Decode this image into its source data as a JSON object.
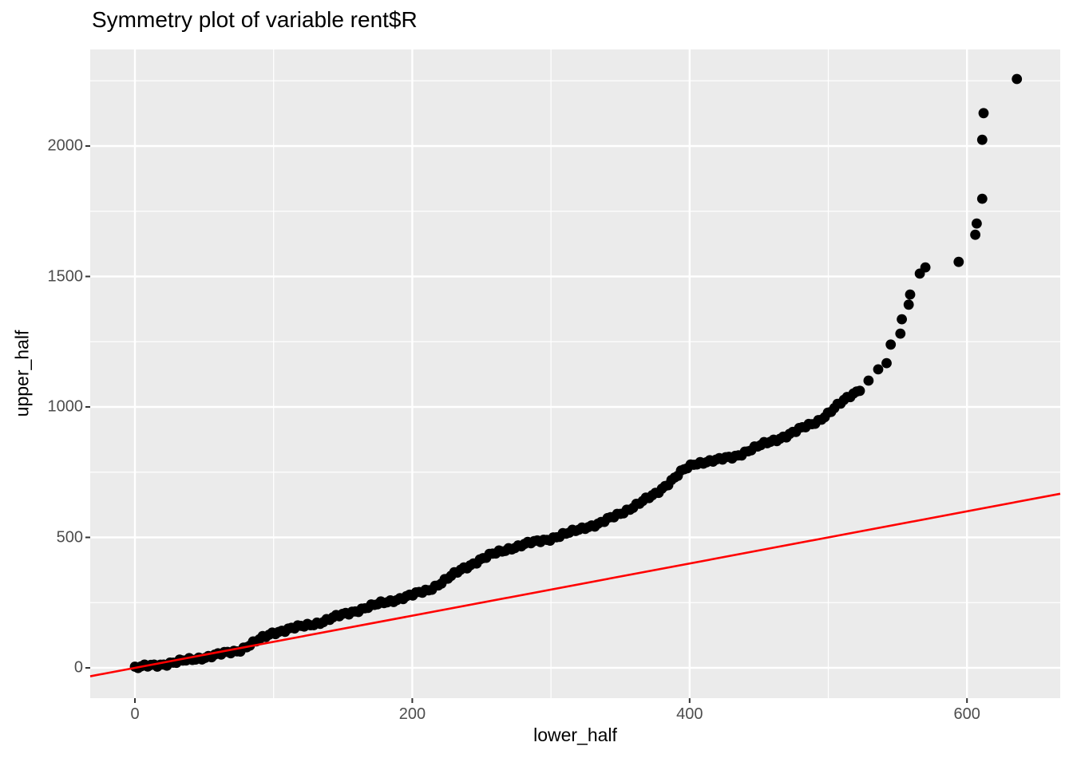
{
  "page": {
    "background_color": "#FFFFFF"
  },
  "chart_data": {
    "type": "scatter",
    "title": "Symmetry plot of variable rent$R",
    "xlabel": "lower_half",
    "ylabel": "upper_half",
    "x_ticks": [
      0,
      200,
      400,
      600
    ],
    "y_ticks": [
      0,
      500,
      1000,
      1500,
      2000
    ],
    "x_minor_gridlines": [
      100,
      300,
      500
    ],
    "y_minor_gridlines": [
      250,
      750,
      1250,
      1750,
      2250
    ],
    "xlim": [
      -32,
      667
    ],
    "ylim": [
      -116,
      2370
    ],
    "grid": true,
    "legend_position": "none",
    "panel_background_color": "#EBEBEB",
    "gridline_color": "#FFFFFF",
    "point_color": "#000000",
    "tick_label_color": "#4D4D4D",
    "reference_line": {
      "description": "identity line y = x",
      "slope": 1,
      "intercept": 0,
      "color": "#FF0000"
    },
    "series": [
      {
        "name": "symmetry-curve-dense-band",
        "style": "dense overlapping points (sampled anchor values)",
        "points": [
          [
            0,
            0
          ],
          [
            8,
            6
          ],
          [
            18,
            12
          ],
          [
            30,
            22
          ],
          [
            47,
            38
          ],
          [
            62,
            52
          ],
          [
            75,
            67
          ],
          [
            88,
            103
          ],
          [
            100,
            135
          ],
          [
            112,
            150
          ],
          [
            122,
            160
          ],
          [
            133,
            174
          ],
          [
            145,
            195
          ],
          [
            160,
            220
          ],
          [
            178,
            248
          ],
          [
            200,
            278
          ],
          [
            212,
            300
          ],
          [
            222,
            330
          ],
          [
            235,
            375
          ],
          [
            248,
            412
          ],
          [
            258,
            435
          ],
          [
            270,
            458
          ],
          [
            285,
            478
          ],
          [
            300,
            496
          ],
          [
            312,
            515
          ],
          [
            325,
            540
          ],
          [
            335,
            552
          ],
          [
            350,
            592
          ],
          [
            363,
            628
          ],
          [
            375,
            665
          ],
          [
            385,
            710
          ],
          [
            395,
            755
          ],
          [
            403,
            780
          ],
          [
            412,
            792
          ],
          [
            422,
            798
          ],
          [
            432,
            808
          ],
          [
            440,
            828
          ],
          [
            450,
            850
          ],
          [
            461,
            872
          ],
          [
            472,
            895
          ],
          [
            482,
            920
          ],
          [
            492,
            945
          ],
          [
            500,
            975
          ],
          [
            508,
            1010
          ],
          [
            515,
            1040
          ],
          [
            521,
            1062
          ],
          [
            525,
            1080
          ]
        ]
      },
      {
        "name": "upper-tail-individual-points",
        "style": "isolated points",
        "points": [
          [
            529,
            1101
          ],
          [
            536,
            1144
          ],
          [
            542,
            1168
          ],
          [
            545,
            1239
          ],
          [
            552,
            1281
          ],
          [
            553,
            1336
          ],
          [
            558,
            1392
          ],
          [
            559,
            1431
          ],
          [
            566,
            1511
          ],
          [
            570,
            1535
          ],
          [
            594,
            1556
          ],
          [
            606,
            1660
          ],
          [
            607,
            1703
          ],
          [
            611,
            1798
          ],
          [
            611,
            2024
          ],
          [
            612,
            2126
          ],
          [
            636,
            2257
          ]
        ]
      }
    ]
  }
}
